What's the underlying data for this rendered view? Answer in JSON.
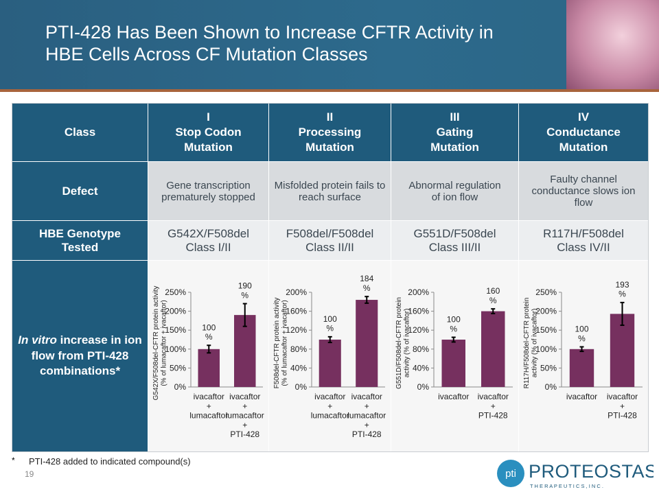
{
  "header": {
    "title_lines": [
      "PTI-428 Has Been Shown to Increase CFTR Activity in",
      "HBE Cells Across CF Mutation Classes"
    ]
  },
  "table": {
    "columns": [
      "Class",
      "I\nStop Codon\nMutation",
      "II\nProcessing\nMutation",
      "III\nGating\nMutation",
      "IV\nConductance\nMutation"
    ],
    "rows": [
      [
        "Defect",
        "Gene transcription\nprematurely stopped",
        "Misfolded protein fails to\nreach surface",
        "Abnormal regulation\nof ion flow",
        "Faulty channel\nconductance slows ion\nflow"
      ],
      [
        "HBE Genotype\nTested",
        "G542X/F508del\nClass I/II",
        "F508del/F508del\nClass II/II",
        "G551D/F508del\nClass III/II",
        "R117H/F508del\nClass IV/II"
      ]
    ],
    "chart_row": {
      "label_emphasis": "In vitro",
      "label": "increase in ion flow from PTI-428 combinations*"
    }
  },
  "chart_data": [
    {
      "type": "bar",
      "ylabel": "G542X/F508del-CFTR protein activity\n(% of lumacaftor + ivacaftor)",
      "categories": [
        "ivacaftor\n+\nlumacaftor",
        "ivacaftor\n+\nlumacaftor\n+\nPTI-428"
      ],
      "values": [
        100,
        190
      ],
      "errors": [
        10,
        30
      ],
      "value_labels": [
        "100\n%",
        "190\n%"
      ],
      "color": "#76305f",
      "ylim": [
        0,
        250
      ],
      "yticks": [
        {
          "value": 0,
          "label": "0%"
        },
        {
          "value": 50,
          "label": "50%"
        },
        {
          "value": 100,
          "label": "100%"
        },
        {
          "value": 150,
          "label": "150%"
        },
        {
          "value": 200,
          "label": "200%"
        },
        {
          "value": 250,
          "label": "250%"
        }
      ]
    },
    {
      "type": "bar",
      "ylabel": "F508del-CFTR protein activity\n(% of lumacaftor + ivacaftor)",
      "categories": [
        "ivacaftor\n+\nlumacaftor",
        "ivacaftor\n+\nlumacaftor\n+\nPTI-428"
      ],
      "values": [
        100,
        184
      ],
      "errors": [
        6,
        7
      ],
      "value_labels": [
        "100\n%",
        "184\n%"
      ],
      "color": "#76305f",
      "ylim": [
        0,
        200
      ],
      "yticks": [
        {
          "value": 0,
          "label": "0%"
        },
        {
          "value": 40,
          "label": "40%"
        },
        {
          "value": 80,
          "label": "80%"
        },
        {
          "value": 120,
          "label": "120%"
        },
        {
          "value": 160,
          "label": "160%"
        },
        {
          "value": 200,
          "label": "200%"
        }
      ]
    },
    {
      "type": "bar",
      "ylabel": "G551D/F508del-CFTR protein\nactivity (% of ivacaftor)",
      "categories": [
        "ivacaftor",
        "ivacaftor\n+\nPTI-428"
      ],
      "values": [
        100,
        160
      ],
      "errors": [
        5,
        5
      ],
      "value_labels": [
        "100\n%",
        "160\n%"
      ],
      "color": "#76305f",
      "ylim": [
        0,
        200
      ],
      "yticks": [
        {
          "value": 0,
          "label": "0%"
        },
        {
          "value": 40,
          "label": "40%"
        },
        {
          "value": 80,
          "label": "80%"
        },
        {
          "value": 120,
          "label": "120%"
        },
        {
          "value": 160,
          "label": "160%"
        },
        {
          "value": 200,
          "label": "200%"
        }
      ]
    },
    {
      "type": "bar",
      "ylabel": "R117H/F508del-CFTR protein\nactivity (% of ivacaftor)",
      "categories": [
        "ivacaftor",
        "ivacaftor\n+\nPTI-428"
      ],
      "values": [
        100,
        193
      ],
      "errors": [
        6,
        30
      ],
      "value_labels": [
        "100\n%",
        "193\n%"
      ],
      "color": "#76305f",
      "ylim": [
        0,
        250
      ],
      "yticks": [
        {
          "value": 0,
          "label": "0%"
        },
        {
          "value": 50,
          "label": "50%"
        },
        {
          "value": 100,
          "label": "100%"
        },
        {
          "value": 150,
          "label": "150%"
        },
        {
          "value": 200,
          "label": "200%"
        },
        {
          "value": 250,
          "label": "250%"
        }
      ]
    }
  ],
  "footer": {
    "marker": "*",
    "note": "PTI-428 added to indicated compound(s)",
    "page_number": "19",
    "logo": {
      "mark": "pti",
      "name": "PROTEOSTASIS",
      "tagline": "T H E R A P E U T I C S ,  I N C ."
    }
  }
}
